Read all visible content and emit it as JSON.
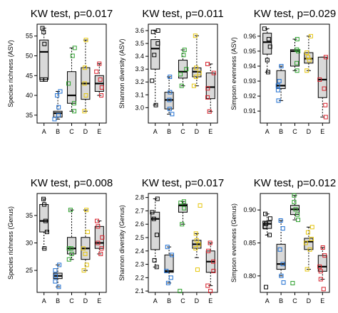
{
  "colors": {
    "A": "#000000",
    "B": "#1f6fd1",
    "C": "#2ca02c",
    "D": "#e6c60d",
    "E": "#d6202a",
    "box_fill": "#d9d9d9"
  },
  "chart_data": [
    {
      "type": "box",
      "title": "KW test, p=0.017",
      "ylabel": "Species richness (ASV)",
      "categories": [
        "A",
        "B",
        "C",
        "D",
        "E"
      ],
      "ylim": [
        33,
        58
      ],
      "yticks": [
        "35",
        "40",
        "45",
        "50",
        "55"
      ],
      "boxes": [
        {
          "q1": 44,
          "median": 51,
          "q3": 54,
          "min": 44,
          "max": 57
        },
        {
          "q1": 34.5,
          "median": 35.5,
          "q3": 36,
          "min": 34,
          "max": 41
        },
        {
          "q1": 38,
          "median": 40,
          "q3": 46,
          "min": 36,
          "max": 52
        },
        {
          "q1": 39,
          "median": 43,
          "q3": 47,
          "min": 36,
          "max": 54
        },
        {
          "q1": 41,
          "median": 43,
          "q3": 45,
          "min": 40,
          "max": 48
        }
      ],
      "points": [
        [
          44,
          44,
          53,
          56,
          57
        ],
        [
          34,
          35,
          37,
          40,
          41
        ],
        [
          36,
          38,
          43,
          50,
          52
        ],
        [
          36,
          40,
          43,
          47,
          54
        ],
        [
          40,
          42,
          44,
          46,
          48
        ]
      ]
    },
    {
      "type": "box",
      "title": "KW test, p=0.011",
      "ylabel": "Shannon diversity (ASV)",
      "categories": [
        "A",
        "B",
        "C",
        "D",
        "E"
      ],
      "ylim": [
        2.88,
        3.65
      ],
      "yticks": [
        "3.0",
        "3.1",
        "3.2",
        "3.3",
        "3.4",
        "3.5",
        "3.6"
      ],
      "boxes": [
        {
          "q1": 3.3,
          "median": 3.46,
          "q3": 3.53,
          "min": 3.02,
          "max": 3.6
        },
        {
          "q1": 2.99,
          "median": 3.06,
          "q3": 3.12,
          "min": 2.95,
          "max": 3.24
        },
        {
          "q1": 3.23,
          "median": 3.28,
          "q3": 3.37,
          "min": 3.17,
          "max": 3.45
        },
        {
          "q1": 3.24,
          "median": 3.28,
          "q3": 3.31,
          "min": 3.17,
          "max": 3.56
        },
        {
          "q1": 3.07,
          "median": 3.16,
          "q3": 3.27,
          "min": 2.97,
          "max": 3.34
        }
      ],
      "points": [
        [
          3.02,
          3.21,
          3.41,
          3.5,
          3.59,
          3.6
        ],
        [
          2.95,
          2.99,
          3.06,
          3.12,
          3.24
        ],
        [
          3.17,
          3.26,
          3.3,
          3.41,
          3.45
        ],
        [
          3.17,
          3.24,
          3.27,
          3.31,
          3.56
        ],
        [
          2.97,
          3.08,
          3.15,
          3.27,
          3.34
        ]
      ]
    },
    {
      "type": "box",
      "title": "KW test, p=0.029",
      "ylabel": "Simpson evenness (ASV)",
      "categories": [
        "A",
        "B",
        "C",
        "D",
        "E"
      ],
      "ylim": [
        0.902,
        0.968
      ],
      "yticks": [
        "0.91",
        "0.92",
        "0.93",
        "0.94",
        "0.95",
        "0.96"
      ],
      "boxes": [
        {
          "q1": 0.948,
          "median": 0.956,
          "q3": 0.962,
          "min": 0.936,
          "max": 0.965
        },
        {
          "q1": 0.925,
          "median": 0.927,
          "q3": 0.937,
          "min": 0.917,
          "max": 0.94
        },
        {
          "q1": 0.94,
          "median": 0.95,
          "q3": 0.951,
          "min": 0.937,
          "max": 0.958
        },
        {
          "q1": 0.942,
          "median": 0.945,
          "q3": 0.949,
          "min": 0.937,
          "max": 0.96
        },
        {
          "q1": 0.919,
          "median": 0.931,
          "q3": 0.946,
          "min": 0.906,
          "max": 0.946
        }
      ],
      "points": [
        [
          0.936,
          0.944,
          0.953,
          0.958,
          0.965
        ],
        [
          0.917,
          0.924,
          0.927,
          0.93,
          0.94
        ],
        [
          0.937,
          0.942,
          0.95,
          0.951,
          0.958
        ],
        [
          0.937,
          0.944,
          0.946,
          0.949,
          0.96
        ],
        [
          0.906,
          0.914,
          0.925,
          0.931,
          0.946
        ]
      ]
    },
    {
      "type": "box",
      "title": "KW test, p=0.008",
      "ylabel": "Species richness (Genus)",
      "categories": [
        "A",
        "B",
        "C",
        "D",
        "E"
      ],
      "ylim": [
        21,
        39
      ],
      "yticks": [
        "25",
        "30",
        "35"
      ],
      "boxes": [
        {
          "q1": 32,
          "median": 34,
          "q3": 37,
          "min": 29,
          "max": 38
        },
        {
          "q1": 23.5,
          "median": 24,
          "q3": 24.5,
          "min": 22,
          "max": 26
        },
        {
          "q1": 28,
          "median": 29,
          "q3": 31,
          "min": 27,
          "max": 36
        },
        {
          "q1": 27,
          "median": 29,
          "q3": 31,
          "min": 25,
          "max": 36
        },
        {
          "q1": 29,
          "median": 30,
          "q3": 33,
          "min": 28,
          "max": 34
        }
      ],
      "points": [
        [
          29,
          32,
          34,
          37,
          38
        ],
        [
          22,
          23,
          24,
          25,
          26
        ],
        [
          27,
          28,
          29,
          29,
          36
        ],
        [
          25,
          26,
          28,
          29,
          32,
          36
        ],
        [
          28,
          29,
          30,
          31,
          33,
          34
        ]
      ]
    },
    {
      "type": "box",
      "title": "KW test, p=0.017",
      "ylabel": "Shannon diversity (Genus)",
      "categories": [
        "A",
        "B",
        "C",
        "D",
        "E"
      ],
      "ylim": [
        2.09,
        2.83
      ],
      "yticks": [
        "2.1",
        "2.2",
        "2.3",
        "2.4",
        "2.5",
        "2.6",
        "2.7",
        "2.8"
      ],
      "boxes": [
        {
          "q1": 2.41,
          "median": 2.64,
          "q3": 2.69,
          "min": 2.28,
          "max": 2.79
        },
        {
          "q1": 2.24,
          "median": 2.25,
          "q3": 2.37,
          "min": 2.16,
          "max": 2.43
        },
        {
          "q1": 2.69,
          "median": 2.74,
          "q3": 2.75,
          "min": 2.6,
          "max": 2.77
        },
        {
          "q1": 2.42,
          "median": 2.45,
          "q3": 2.48,
          "min": 2.35,
          "max": 2.53
        },
        {
          "q1": 2.24,
          "median": 2.32,
          "q3": 2.4,
          "min": 2.14,
          "max": 2.46
        }
      ],
      "points": [
        [
          2.28,
          2.33,
          2.52,
          2.64,
          2.69,
          2.79
        ],
        [
          2.16,
          2.2,
          2.25,
          2.37,
          2.43
        ],
        [
          2.1,
          2.6,
          2.72,
          2.76,
          2.77
        ],
        [
          2.26,
          2.42,
          2.45,
          2.48,
          2.53,
          2.74
        ],
        [
          2.1,
          2.14,
          2.25,
          2.32,
          2.4,
          2.46
        ]
      ]
    },
    {
      "type": "box",
      "title": "KW test, p=0.012",
      "ylabel": "Simpson evenness (Genus)",
      "categories": [
        "A",
        "B",
        "C",
        "D",
        "E"
      ],
      "ylim": [
        0.775,
        0.925
      ],
      "yticks": [
        "0.80",
        "0.85",
        "0.90"
      ],
      "boxes": [
        {
          "q1": 0.872,
          "median": 0.879,
          "q3": 0.883,
          "min": 0.862,
          "max": 0.894
        },
        {
          "q1": 0.81,
          "median": 0.818,
          "q3": 0.848,
          "min": 0.8,
          "max": 0.884
        },
        {
          "q1": 0.893,
          "median": 0.901,
          "q3": 0.907,
          "min": 0.885,
          "max": 0.922
        },
        {
          "q1": 0.84,
          "median": 0.852,
          "q3": 0.857,
          "min": 0.81,
          "max": 0.874
        },
        {
          "q1": 0.807,
          "median": 0.814,
          "q3": 0.831,
          "min": 0.795,
          "max": 0.843
        }
      ],
      "points": [
        [
          0.783,
          0.862,
          0.874,
          0.879,
          0.887,
          0.894
        ],
        [
          0.79,
          0.8,
          0.818,
          0.84,
          0.872,
          0.884
        ],
        [
          0.789,
          0.885,
          0.893,
          0.901,
          0.912,
          0.922
        ],
        [
          0.81,
          0.84,
          0.85,
          0.856,
          0.866,
          0.874
        ],
        [
          0.78,
          0.795,
          0.807,
          0.814,
          0.831,
          0.843
        ]
      ]
    }
  ]
}
